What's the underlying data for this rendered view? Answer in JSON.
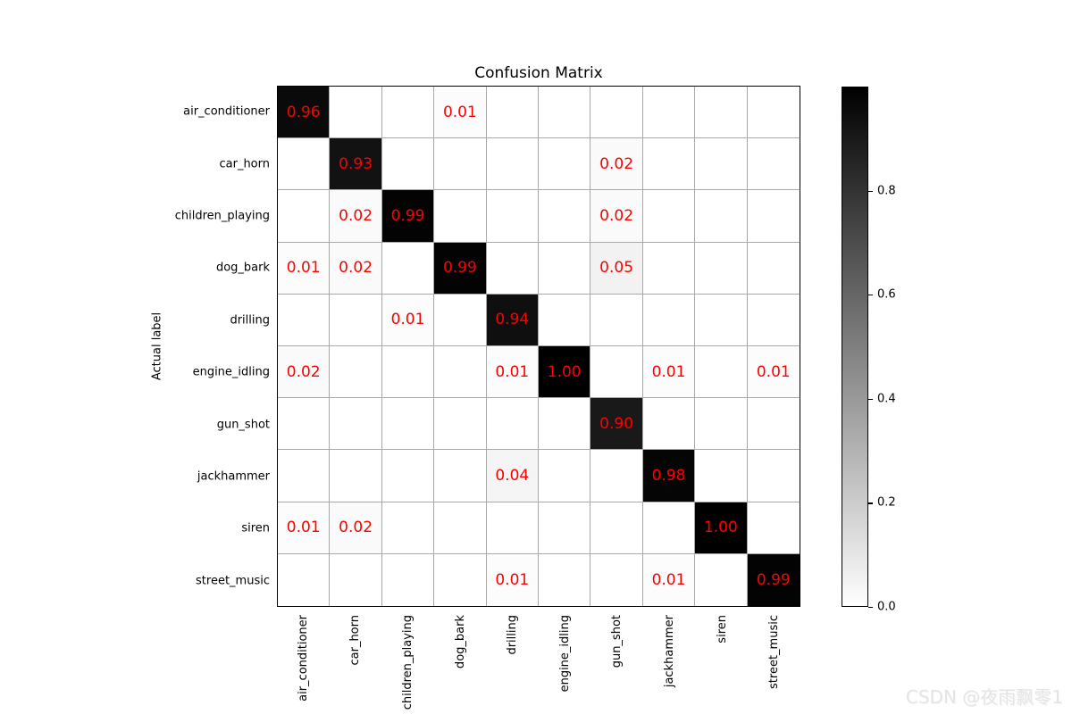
{
  "title": "Confusion Matrix",
  "ylabel": "Actual label",
  "watermark": "CSDN @夜雨飘零1",
  "chart_data": {
    "type": "heatmap",
    "title": "Confusion Matrix",
    "xlabel": "",
    "ylabel": "Actual label",
    "categories": [
      "air_conditioner",
      "car_horn",
      "children_playing",
      "dog_bark",
      "drilling",
      "engine_idling",
      "gun_shot",
      "jackhammer",
      "siren",
      "street_music"
    ],
    "matrix": [
      [
        0.96,
        null,
        null,
        0.01,
        null,
        null,
        null,
        null,
        null,
        null
      ],
      [
        null,
        0.93,
        null,
        null,
        null,
        null,
        0.02,
        null,
        null,
        null
      ],
      [
        null,
        0.02,
        0.99,
        null,
        null,
        null,
        0.02,
        null,
        null,
        null
      ],
      [
        0.01,
        0.02,
        null,
        0.99,
        null,
        null,
        0.05,
        null,
        null,
        null
      ],
      [
        null,
        null,
        0.01,
        null,
        0.94,
        null,
        null,
        null,
        null,
        null
      ],
      [
        0.02,
        null,
        null,
        null,
        0.01,
        1.0,
        null,
        0.01,
        null,
        0.01
      ],
      [
        null,
        null,
        null,
        null,
        null,
        null,
        0.9,
        null,
        null,
        null
      ],
      [
        null,
        null,
        null,
        null,
        0.04,
        null,
        null,
        0.98,
        null,
        null
      ],
      [
        0.01,
        0.02,
        null,
        null,
        null,
        null,
        null,
        null,
        1.0,
        null
      ],
      [
        null,
        null,
        null,
        null,
        0.01,
        null,
        null,
        0.01,
        null,
        0.99
      ]
    ],
    "cell_text_color": "#ff0000",
    "colormap": {
      "low": "#ffffff",
      "high": "#000000"
    },
    "colorbar": {
      "ticks": [
        0.8,
        0.6,
        0.4,
        0.2,
        0.0
      ],
      "range": [
        0,
        1
      ]
    },
    "grid": true,
    "legend_position": "right-colorbar"
  }
}
